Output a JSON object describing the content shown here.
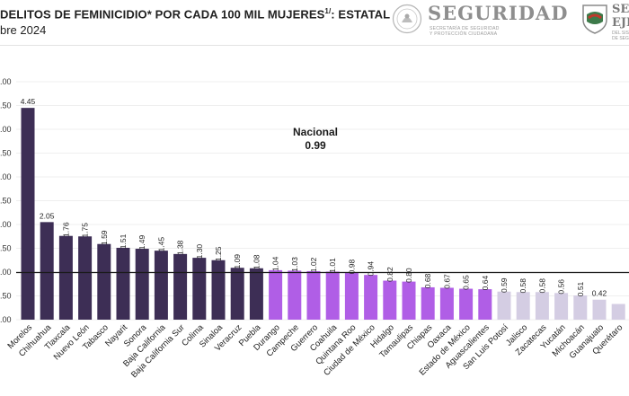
{
  "header": {
    "title": "DELITOS DE FEMINICIDIO* POR CADA 100 MIL MUJERES",
    "title_sup": "1/",
    "title_suffix": ": ESTATAL",
    "subtitle": "bre 2024",
    "brand": "SEGURIDAD",
    "brand_sub_1": "SECRETARÍA DE SEGURIDAD",
    "brand_sub_2": "Y PROTECCIÓN CIUDADANA",
    "brand2_line1": "SEC",
    "brand2_line2": "EJE",
    "brand2_sub": "DEL SIS DE SEG"
  },
  "national": {
    "label": "Nacional",
    "value": "0.99"
  },
  "colors": {
    "top_group": "#3d2e55",
    "mid_group": "#b05ee6",
    "low_group": "#d4cde3",
    "reference_line": "#1a1a1a",
    "grid": "#e0e0e0"
  },
  "chart_data": {
    "type": "bar",
    "ylim": [
      0,
      5
    ],
    "ytick_labels": [
      ".00",
      ".50",
      ".00",
      ".50",
      ".00",
      ".50",
      ".00",
      ".50",
      ".00",
      ".50",
      ".00"
    ],
    "reference_line": 0.99,
    "categories": [
      "Morelos",
      "Chihuahua",
      "Tlaxcala",
      "Nuevo León",
      "Tabasco",
      "Nayarit",
      "Sonora",
      "Baja California",
      "Baja California Sur",
      "Colima",
      "Sinaloa",
      "Veracruz",
      "Puebla",
      "Durango",
      "Campeche",
      "Guerrero",
      "Coahuila",
      "Quintana Roo",
      "Ciudad de México",
      "Hidalgo",
      "Tamaulipas",
      "Chiapas",
      "Oaxaca",
      "Estado de México",
      "Aguascalientes",
      "San Luis Potosí",
      "Jalisco",
      "Zacatecas",
      "Yucatán",
      "Michoacán",
      "Guanajuato",
      "Querétaro"
    ],
    "values": [
      4.45,
      2.05,
      1.76,
      1.75,
      1.59,
      1.51,
      1.49,
      1.45,
      1.38,
      1.3,
      1.25,
      1.09,
      1.08,
      1.04,
      1.03,
      1.02,
      1.01,
      0.98,
      0.94,
      0.82,
      0.8,
      0.68,
      0.67,
      0.65,
      0.64,
      0.59,
      0.58,
      0.58,
      0.56,
      0.51,
      0.42,
      0.33
    ],
    "value_labels": [
      "4.45",
      "2.05",
      "1.76",
      "1.75",
      "1.59",
      "1.51",
      "1.49",
      "1.45",
      "1.38",
      "1.30",
      "1.25",
      "1.09",
      "1.08",
      "1.04",
      "1.03",
      "1.02",
      "1.01",
      "0.98",
      "0.94",
      "0.82",
      "0.80",
      "0.68",
      "0.67",
      "0.65",
      "0.64",
      "0.59",
      "0.58",
      "0.58",
      "0.56",
      "0.51",
      "0.42",
      ""
    ],
    "groups": [
      "top",
      "top",
      "top",
      "top",
      "top",
      "top",
      "top",
      "top",
      "top",
      "top",
      "top",
      "top",
      "top",
      "mid",
      "mid",
      "mid",
      "mid",
      "mid",
      "mid",
      "mid",
      "mid",
      "mid",
      "mid",
      "mid",
      "mid",
      "low",
      "low",
      "low",
      "low",
      "low",
      "low",
      "low"
    ]
  }
}
